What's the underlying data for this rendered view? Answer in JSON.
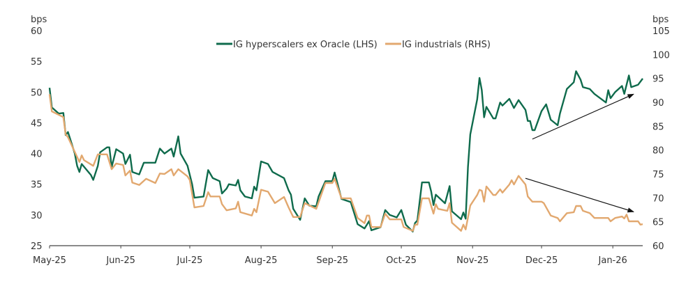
{
  "chart_data": {
    "type": "line",
    "title": "",
    "y_left": {
      "label": "bps",
      "range": [
        25,
        60
      ],
      "ticks": [
        "25",
        "30",
        "35",
        "40",
        "45",
        "50",
        "55",
        "60"
      ]
    },
    "y_right": {
      "label": "bps",
      "range": [
        60,
        105
      ],
      "ticks": [
        "60",
        "65",
        "70",
        "75",
        "80",
        "85",
        "90",
        "95",
        "100",
        "105"
      ]
    },
    "x_axis": {
      "range": [
        "2025-05-01",
        "2026-01-14"
      ],
      "ticks": [
        {
          "date": "2025-05-01",
          "label": "May-25"
        },
        {
          "date": "2025-06-01",
          "label": "Jun-25"
        },
        {
          "date": "2025-07-01",
          "label": "Jul-25"
        },
        {
          "date": "2025-08-01",
          "label": "Aug-25"
        },
        {
          "date": "2025-09-01",
          "label": "Sep-25"
        },
        {
          "date": "2025-10-01",
          "label": "Oct-25"
        },
        {
          "date": "2025-11-01",
          "label": "Nov-25"
        },
        {
          "date": "2025-12-01",
          "label": "Dec-25"
        },
        {
          "date": "2026-01-01",
          "label": "Jan-26"
        }
      ]
    },
    "grid": false,
    "legend_placement": "top-center",
    "series": [
      {
        "name": "IG hyperscalers ex Oracle (LHS)",
        "axis": "left",
        "color": "#0f6b4c",
        "points": [
          [
            "2025-05-01",
            50.7
          ],
          [
            "2025-05-02",
            47.5
          ],
          [
            "2025-05-05",
            46.5
          ],
          [
            "2025-05-07",
            46.6
          ],
          [
            "2025-05-08",
            43
          ],
          [
            "2025-05-09",
            43.5
          ],
          [
            "2025-05-12",
            40
          ],
          [
            "2025-05-13",
            38
          ],
          [
            "2025-05-14",
            37
          ],
          [
            "2025-05-15",
            38.3
          ],
          [
            "2025-05-19",
            36.5
          ],
          [
            "2025-05-20",
            35.7
          ],
          [
            "2025-05-22",
            38
          ],
          [
            "2025-05-23",
            40.2
          ],
          [
            "2025-05-26",
            41
          ],
          [
            "2025-05-27",
            41
          ],
          [
            "2025-05-28",
            37.8
          ],
          [
            "2025-05-30",
            40.7
          ],
          [
            "2025-06-02",
            40
          ],
          [
            "2025-06-03",
            38.3
          ],
          [
            "2025-06-05",
            39.8
          ],
          [
            "2025-06-06",
            37
          ],
          [
            "2025-06-09",
            36.6
          ],
          [
            "2025-06-11",
            38.5
          ],
          [
            "2025-06-16",
            38.5
          ],
          [
            "2025-06-18",
            40.8
          ],
          [
            "2025-06-20",
            40
          ],
          [
            "2025-06-23",
            40.8
          ],
          [
            "2025-06-24",
            39.5
          ],
          [
            "2025-06-26",
            42.8
          ],
          [
            "2025-06-27",
            40
          ],
          [
            "2025-06-30",
            38
          ],
          [
            "2025-07-02",
            35
          ],
          [
            "2025-07-03",
            32.8
          ],
          [
            "2025-07-07",
            33
          ],
          [
            "2025-07-09",
            37.3
          ],
          [
            "2025-07-11",
            36
          ],
          [
            "2025-07-14",
            35.5
          ],
          [
            "2025-07-15",
            33.5
          ],
          [
            "2025-07-17",
            34.3
          ],
          [
            "2025-07-18",
            35
          ],
          [
            "2025-07-21",
            34.8
          ],
          [
            "2025-07-22",
            35.7
          ],
          [
            "2025-07-23",
            34
          ],
          [
            "2025-07-25",
            33
          ],
          [
            "2025-07-28",
            32.7
          ],
          [
            "2025-07-29",
            34.6
          ],
          [
            "2025-07-30",
            34
          ],
          [
            "2025-08-01",
            38.7
          ],
          [
            "2025-08-04",
            38.3
          ],
          [
            "2025-08-06",
            37
          ],
          [
            "2025-08-11",
            36
          ],
          [
            "2025-08-13",
            34
          ],
          [
            "2025-08-14",
            33.3
          ],
          [
            "2025-08-15",
            31
          ],
          [
            "2025-08-18",
            29.2
          ],
          [
            "2025-08-20",
            32.7
          ],
          [
            "2025-08-22",
            31.5
          ],
          [
            "2025-08-25",
            31.4
          ],
          [
            "2025-08-26",
            33
          ],
          [
            "2025-08-29",
            35.5
          ],
          [
            "2025-09-01",
            35.5
          ],
          [
            "2025-09-02",
            36.9
          ],
          [
            "2025-09-05",
            32.6
          ],
          [
            "2025-09-09",
            32.1
          ],
          [
            "2025-09-12",
            28.5
          ],
          [
            "2025-09-15",
            27.8
          ],
          [
            "2025-09-17",
            29
          ],
          [
            "2025-09-18",
            27.5
          ],
          [
            "2025-09-22",
            28
          ],
          [
            "2025-09-24",
            30.8
          ],
          [
            "2025-09-26",
            30
          ],
          [
            "2025-09-29",
            29.6
          ],
          [
            "2025-10-01",
            30.8
          ],
          [
            "2025-10-03",
            28.4
          ],
          [
            "2025-10-06",
            27.3
          ],
          [
            "2025-10-07",
            28.7
          ],
          [
            "2025-10-08",
            29.1
          ],
          [
            "2025-10-10",
            35.3
          ],
          [
            "2025-10-13",
            35.3
          ],
          [
            "2025-10-14",
            33.8
          ],
          [
            "2025-10-15",
            31.6
          ],
          [
            "2025-10-16",
            33.3
          ],
          [
            "2025-10-20",
            31.9
          ],
          [
            "2025-10-22",
            34.7
          ],
          [
            "2025-10-23",
            30.6
          ],
          [
            "2025-10-27",
            29.3
          ],
          [
            "2025-10-28",
            30.4
          ],
          [
            "2025-10-29",
            29.4
          ],
          [
            "2025-10-30",
            37.8
          ],
          [
            "2025-10-31",
            43.1
          ],
          [
            "2025-11-03",
            48.8
          ],
          [
            "2025-11-04",
            52.3
          ],
          [
            "2025-11-05",
            50.3
          ],
          [
            "2025-11-06",
            45.9
          ],
          [
            "2025-11-07",
            47.6
          ],
          [
            "2025-11-10",
            45.7
          ],
          [
            "2025-11-11",
            45.7
          ],
          [
            "2025-11-13",
            48.3
          ],
          [
            "2025-11-14",
            47.8
          ],
          [
            "2025-11-17",
            48.9
          ],
          [
            "2025-11-19",
            47.4
          ],
          [
            "2025-11-21",
            48.7
          ],
          [
            "2025-11-24",
            47.1
          ],
          [
            "2025-11-25",
            45.3
          ],
          [
            "2025-11-26",
            45.3
          ],
          [
            "2025-11-27",
            43.8
          ],
          [
            "2025-11-28",
            43.8
          ],
          [
            "2025-12-01",
            46.9
          ],
          [
            "2025-12-03",
            48
          ],
          [
            "2025-12-05",
            45.5
          ],
          [
            "2025-12-08",
            44.6
          ],
          [
            "2025-12-09",
            46.5
          ],
          [
            "2025-12-12",
            50.5
          ],
          [
            "2025-12-15",
            51.6
          ],
          [
            "2025-12-16",
            53.4
          ],
          [
            "2025-12-18",
            52
          ],
          [
            "2025-12-19",
            50.8
          ],
          [
            "2025-12-22",
            50.5
          ],
          [
            "2025-12-24",
            49.7
          ],
          [
            "2025-12-29",
            48.3
          ],
          [
            "2025-12-30",
            50.3
          ],
          [
            "2025-12-31",
            49
          ],
          [
            "2026-01-02",
            50
          ],
          [
            "2026-01-05",
            51
          ],
          [
            "2026-01-06",
            49.7
          ],
          [
            "2026-01-08",
            52.7
          ],
          [
            "2026-01-09",
            50.8
          ],
          [
            "2026-01-12",
            51.2
          ],
          [
            "2026-01-14",
            52.2
          ]
        ]
      },
      {
        "name": "IG industrials (RHS)",
        "axis": "right",
        "color": "#e2a86f",
        "points": [
          [
            "2025-05-01",
            91.7
          ],
          [
            "2025-05-02",
            88.1
          ],
          [
            "2025-05-07",
            86.9
          ],
          [
            "2025-05-08",
            83.3
          ],
          [
            "2025-05-09",
            82.7
          ],
          [
            "2025-05-14",
            77.5
          ],
          [
            "2025-05-15",
            78.9
          ],
          [
            "2025-05-16",
            77.9
          ],
          [
            "2025-05-20",
            76.7
          ],
          [
            "2025-05-22",
            79.1
          ],
          [
            "2025-05-26",
            79.1
          ],
          [
            "2025-05-28",
            76
          ],
          [
            "2025-05-30",
            77.2
          ],
          [
            "2025-06-02",
            76.9
          ],
          [
            "2025-06-03",
            74.7
          ],
          [
            "2025-06-05",
            75.7
          ],
          [
            "2025-06-06",
            73.2
          ],
          [
            "2025-06-09",
            72.7
          ],
          [
            "2025-06-12",
            74
          ],
          [
            "2025-06-16",
            73.1
          ],
          [
            "2025-06-18",
            75.1
          ],
          [
            "2025-06-20",
            75
          ],
          [
            "2025-06-23",
            76
          ],
          [
            "2025-06-24",
            74.7
          ],
          [
            "2025-06-26",
            76
          ],
          [
            "2025-06-30",
            74.5
          ],
          [
            "2025-07-01",
            73.7
          ],
          [
            "2025-07-03",
            68
          ],
          [
            "2025-07-07",
            68.3
          ],
          [
            "2025-07-09",
            71.2
          ],
          [
            "2025-07-10",
            70.3
          ],
          [
            "2025-07-14",
            70.3
          ],
          [
            "2025-07-15",
            68.7
          ],
          [
            "2025-07-17",
            67.4
          ],
          [
            "2025-07-21",
            67.8
          ],
          [
            "2025-07-22",
            69.2
          ],
          [
            "2025-07-23",
            67
          ],
          [
            "2025-07-28",
            66.3
          ],
          [
            "2025-07-29",
            67.7
          ],
          [
            "2025-07-30",
            67
          ],
          [
            "2025-08-01",
            71.7
          ],
          [
            "2025-08-04",
            71.3
          ],
          [
            "2025-08-07",
            68.9
          ],
          [
            "2025-08-11",
            70.2
          ],
          [
            "2025-08-13",
            68
          ],
          [
            "2025-08-15",
            66
          ],
          [
            "2025-08-18",
            66
          ],
          [
            "2025-08-20",
            68.9
          ],
          [
            "2025-08-25",
            67.7
          ],
          [
            "2025-08-29",
            73.1
          ],
          [
            "2025-09-01",
            73.1
          ],
          [
            "2025-09-02",
            74
          ],
          [
            "2025-09-05",
            69.9
          ],
          [
            "2025-09-09",
            69.9
          ],
          [
            "2025-09-12",
            65.8
          ],
          [
            "2025-09-15",
            64.7
          ],
          [
            "2025-09-16",
            66.3
          ],
          [
            "2025-09-17",
            66.3
          ],
          [
            "2025-09-18",
            63.9
          ],
          [
            "2025-09-22",
            63.9
          ],
          [
            "2025-09-24",
            66.7
          ],
          [
            "2025-09-26",
            65.5
          ],
          [
            "2025-10-01",
            65.5
          ],
          [
            "2025-10-02",
            63.9
          ],
          [
            "2025-10-06",
            63.1
          ],
          [
            "2025-10-07",
            64.4
          ],
          [
            "2025-10-08",
            64.4
          ],
          [
            "2025-10-10",
            69.9
          ],
          [
            "2025-10-13",
            69.9
          ],
          [
            "2025-10-15",
            66.7
          ],
          [
            "2025-10-16",
            68.7
          ],
          [
            "2025-10-17",
            67.7
          ],
          [
            "2025-10-21",
            67.3
          ],
          [
            "2025-10-22",
            68.9
          ],
          [
            "2025-10-23",
            64.8
          ],
          [
            "2025-10-27",
            63.1
          ],
          [
            "2025-10-28",
            64.4
          ],
          [
            "2025-10-29",
            63.4
          ],
          [
            "2025-10-31",
            68.4
          ],
          [
            "2025-11-03",
            70.6
          ],
          [
            "2025-11-04",
            71.7
          ],
          [
            "2025-11-05",
            71.5
          ],
          [
            "2025-11-06",
            69.2
          ],
          [
            "2025-11-07",
            72.4
          ],
          [
            "2025-11-10",
            70.6
          ],
          [
            "2025-11-11",
            70.6
          ],
          [
            "2025-11-13",
            71.8
          ],
          [
            "2025-11-14",
            71.1
          ],
          [
            "2025-11-17",
            72.8
          ],
          [
            "2025-11-18",
            73.7
          ],
          [
            "2025-11-19",
            72.8
          ],
          [
            "2025-11-21",
            74.6
          ],
          [
            "2025-11-24",
            72.8
          ],
          [
            "2025-11-25",
            70.3
          ],
          [
            "2025-11-27",
            69.2
          ],
          [
            "2025-12-01",
            69.2
          ],
          [
            "2025-12-02",
            68.9
          ],
          [
            "2025-12-05",
            66.3
          ],
          [
            "2025-12-08",
            65.8
          ],
          [
            "2025-12-09",
            65.1
          ],
          [
            "2025-12-12",
            66.8
          ],
          [
            "2025-12-15",
            67
          ],
          [
            "2025-12-16",
            68.3
          ],
          [
            "2025-12-18",
            68.3
          ],
          [
            "2025-12-19",
            67.3
          ],
          [
            "2025-12-22",
            66.8
          ],
          [
            "2025-12-24",
            65.8
          ],
          [
            "2025-12-30",
            65.8
          ],
          [
            "2025-12-31",
            65.1
          ],
          [
            "2026-01-02",
            65.8
          ],
          [
            "2026-01-05",
            66.1
          ],
          [
            "2026-01-06",
            65.7
          ],
          [
            "2026-01-07",
            66.5
          ],
          [
            "2026-01-08",
            65.1
          ],
          [
            "2026-01-12",
            65.1
          ],
          [
            "2026-01-13",
            64.4
          ],
          [
            "2026-01-14",
            64.5
          ]
        ]
      }
    ],
    "annotations": [
      {
        "type": "arrow",
        "color": "#111111",
        "axis": "right",
        "from": [
          "2025-11-27",
          82.3
        ],
        "to": [
          "2026-01-10",
          91.7
        ]
      },
      {
        "type": "arrow",
        "color": "#111111",
        "axis": "right",
        "from": [
          "2025-11-24",
          74.1
        ],
        "to": [
          "2026-01-10",
          67.1
        ]
      }
    ]
  }
}
